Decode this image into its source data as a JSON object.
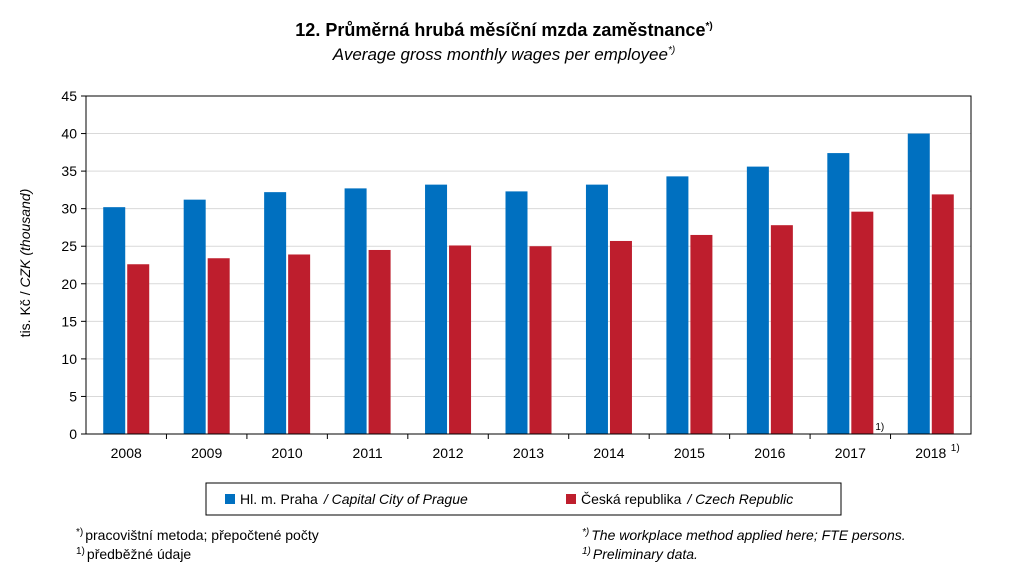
{
  "title": {
    "cz": "12. Průměrná hrubá měsíční mzda zaměstnance",
    "cz_mark": "*)",
    "en": "Average gross monthly wages per employee",
    "en_mark": "*)"
  },
  "chart_data": {
    "type": "bar",
    "categories": [
      "2008",
      "2009",
      "2010",
      "2011",
      "2012",
      "2013",
      "2014",
      "2015",
      "2016",
      "2017",
      "2018"
    ],
    "category_marks": [
      "",
      "",
      "",
      "",
      "",
      "",
      "",
      "",
      "",
      "",
      "1)"
    ],
    "bar_marks": [
      "",
      "",
      "",
      "",
      "",
      "",
      "",
      "",
      "",
      "1)",
      ""
    ],
    "series": [
      {
        "name": "Hl. m. Praha",
        "name_en": "/ Capital City of Prague",
        "color": "#0070c0",
        "values": [
          30.2,
          31.2,
          32.2,
          32.7,
          33.2,
          32.3,
          33.2,
          34.3,
          35.6,
          37.4,
          40.0
        ]
      },
      {
        "name": "Česká republika",
        "name_en": "/ Czech Republic",
        "color": "#be1e2d",
        "values": [
          22.6,
          23.4,
          23.9,
          24.5,
          25.1,
          25.0,
          25.7,
          26.5,
          27.8,
          29.6,
          31.9
        ]
      }
    ],
    "ylabel_cz": "tis. Kč / ",
    "ylabel_en": "CZK (thousand)",
    "ylim": [
      0,
      45
    ],
    "yticks": [
      0,
      5,
      10,
      15,
      20,
      25,
      30,
      35,
      40,
      45
    ],
    "grid": true,
    "legend_position": "bottom"
  },
  "notes": {
    "left": [
      {
        "mark": "*)",
        "text": "pracovištní metoda;  přepočtené počty"
      },
      {
        "mark": "1)",
        "text": "předběžné údaje"
      }
    ],
    "right": [
      {
        "mark": "*)",
        "text": "The workplace method applied here; FTE persons."
      },
      {
        "mark": "1)",
        "text": "Preliminary data."
      }
    ]
  }
}
